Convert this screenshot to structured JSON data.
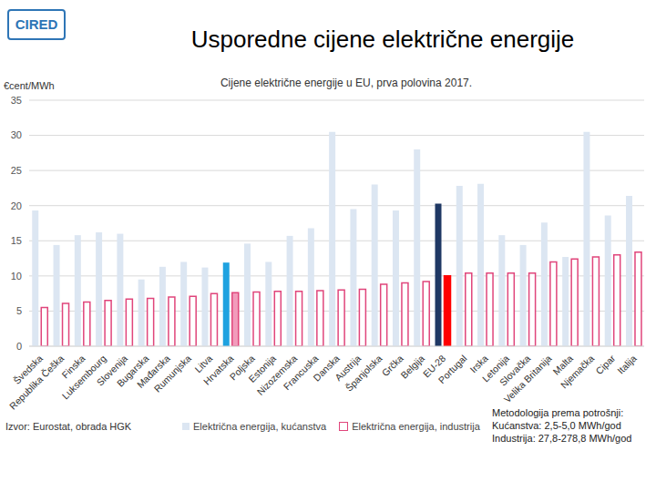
{
  "chart_data": {
    "type": "bar",
    "title": "Usporedne cijene električne energije",
    "subtitle": "Cijene električne energije u EU, prva polovina 2017.",
    "y_label": "€cent/MWh",
    "logo": "CIRED",
    "source": "Izvor: Eurostat, obrada HGK",
    "methodology": [
      "Metodologija prema potrošnji:",
      "Kućanstva: 2,5-5,0 MWh/god",
      "Industrija: 27,8-278,8 MWh/god"
    ],
    "categories": [
      "Švedska",
      "Republika Češka",
      "Finska",
      "Luksembourg",
      "Slovenija",
      "Bugarska",
      "Mađarska",
      "Rumunjska",
      "Litva",
      "Hrvatska",
      "Poljska",
      "Estonija",
      "Nizozemska",
      "Francuska",
      "Danska",
      "Austrija",
      "Španjolska",
      "Grčka",
      "Belgija",
      "EU-28",
      "Portugal",
      "Irska",
      "Letonija",
      "Slovačka",
      "Velika Britanija",
      "Malta",
      "Njemačka",
      "Cipar",
      "Italija"
    ],
    "series": [
      {
        "name": "Električna energija, kućanstva",
        "color": "#dce6f2",
        "colors": [
          "#dce6f2",
          "#dce6f2",
          "#dce6f2",
          "#dce6f2",
          "#dce6f2",
          "#dce6f2",
          "#dce6f2",
          "#dce6f2",
          "#dce6f2",
          "#1fa2e0",
          "#dce6f2",
          "#dce6f2",
          "#dce6f2",
          "#dce6f2",
          "#dce6f2",
          "#dce6f2",
          "#dce6f2",
          "#dce6f2",
          "#dce6f2",
          "#1f3864",
          "#dce6f2",
          "#dce6f2",
          "#dce6f2",
          "#dce6f2",
          "#dce6f2",
          "#dce6f2",
          "#dce6f2",
          "#dce6f2",
          "#dce6f2"
        ],
        "values": [
          19.3,
          14.4,
          15.8,
          16.2,
          16.0,
          9.5,
          11.3,
          12.0,
          11.2,
          11.9,
          14.6,
          12.0,
          15.7,
          16.8,
          30.5,
          19.5,
          23.0,
          19.3,
          28.0,
          20.3,
          22.8,
          23.1,
          15.8,
          14.4,
          17.6,
          12.7,
          30.5,
          18.6,
          21.4
        ]
      },
      {
        "name": "Električna energija, industrija",
        "color": "#e0457b",
        "colors": [
          "#e0457b",
          "#e0457b",
          "#e0457b",
          "#e0457b",
          "#e0457b",
          "#e0457b",
          "#e0457b",
          "#e0457b",
          "#e0457b",
          "#f29bbb",
          "#e0457b",
          "#e0457b",
          "#e0457b",
          "#e0457b",
          "#e0457b",
          "#e0457b",
          "#e0457b",
          "#e0457b",
          "#e0457b",
          "#ff0000",
          "#e0457b",
          "#e0457b",
          "#e0457b",
          "#e0457b",
          "#e0457b",
          "#e0457b",
          "#e0457b",
          "#e0457b",
          "#e0457b"
        ],
        "values": [
          5.5,
          6.1,
          6.3,
          6.5,
          6.7,
          6.8,
          7.0,
          7.1,
          7.5,
          7.6,
          7.7,
          7.8,
          7.8,
          7.9,
          8.0,
          8.1,
          8.8,
          9.0,
          9.2,
          10.0,
          10.4,
          10.4,
          10.4,
          10.4,
          12.0,
          12.4,
          12.7,
          13.0,
          13.4
        ]
      }
    ],
    "ylim": [
      0,
      35
    ],
    "yticks": [
      0,
      5,
      10,
      15,
      20,
      25,
      30,
      35
    ],
    "grid": true,
    "legend": "bottom"
  }
}
